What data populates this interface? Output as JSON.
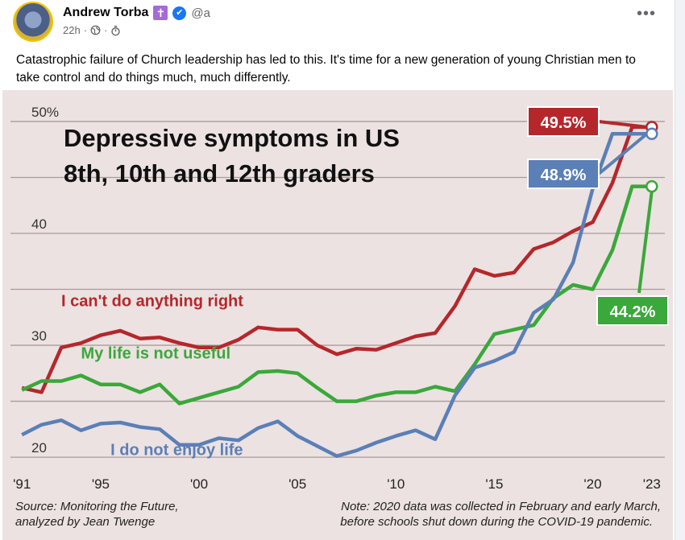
{
  "post": {
    "author_name": "Andrew Torba",
    "author_badge_icon": "latin-cross-icon",
    "handle": "@a",
    "timestamp": "22h",
    "separator": "·",
    "body_text": "Catastrophic failure of Church leadership has led to this. It's time for a new generation of young Christian men to take control and do things much, much differently.",
    "more_label": "•••"
  },
  "colors": {
    "red": "#b5272b",
    "green": "#3aa83a",
    "blue": "#5b7fb7",
    "chart_bg": "#ece2e1"
  },
  "chart_data": {
    "type": "line",
    "title_line1": "Depressive symptoms in US",
    "title_line2": "8th, 10th and 12th graders",
    "y_ticks": [
      "50%",
      "40",
      "30",
      "20"
    ],
    "ylim": [
      19,
      50.5
    ],
    "xlim": [
      1990.5,
      2023.5
    ],
    "x_tick_values": [
      1991,
      1995,
      2000,
      2005,
      2010,
      2015,
      2020,
      2023
    ],
    "x_ticks": [
      "'91",
      "'95",
      "'00",
      "'05",
      "'10",
      "'15",
      "'20",
      "'23"
    ],
    "source_line1": "Source: Monitoring the Future,",
    "source_line2": "analyzed by Jean Twenge",
    "note_line1": "Note: 2020 data was collected in February and early March,",
    "note_line2": "before schools shut down during the COVID-19 pandemic.",
    "series": [
      {
        "name": "I can't do anything right",
        "color": "#b5272b",
        "end_label": "49.5%",
        "x": [
          1991,
          1992,
          1993,
          1994,
          1995,
          1996,
          1997,
          1998,
          1999,
          2000,
          2001,
          2002,
          2003,
          2004,
          2005,
          2006,
          2007,
          2008,
          2009,
          2010,
          2011,
          2012,
          2013,
          2014,
          2015,
          2016,
          2017,
          2018,
          2019,
          2020,
          2021,
          2022,
          2023
        ],
        "y": [
          26.2,
          25.8,
          29.8,
          30.2,
          30.9,
          31.3,
          30.6,
          30.7,
          30.2,
          29.8,
          29.8,
          30.5,
          31.6,
          31.4,
          31.4,
          30.0,
          29.2,
          29.7,
          29.6,
          30.2,
          30.8,
          31.1,
          33.5,
          36.8,
          36.2,
          36.5,
          38.6,
          39.2,
          40.2,
          41.0,
          44.5,
          49.5,
          49.5
        ],
        "label_x": 1993,
        "label_y": 33.5
      },
      {
        "name": "My life is not useful",
        "color": "#3aa83a",
        "end_label": "44.2%",
        "x": [
          1991,
          1992,
          1993,
          1994,
          1995,
          1996,
          1997,
          1998,
          1999,
          2000,
          2001,
          2002,
          2003,
          2004,
          2005,
          2006,
          2007,
          2008,
          2009,
          2010,
          2011,
          2012,
          2013,
          2014,
          2015,
          2016,
          2017,
          2018,
          2019,
          2020,
          2021,
          2022,
          2023
        ],
        "y": [
          26.0,
          26.8,
          26.8,
          27.3,
          26.5,
          26.5,
          25.8,
          26.5,
          24.8,
          25.3,
          25.8,
          26.3,
          27.6,
          27.7,
          27.5,
          26.2,
          25.0,
          25.0,
          25.5,
          25.8,
          25.8,
          26.3,
          25.9,
          28.3,
          31.0,
          31.4,
          31.8,
          34.2,
          35.4,
          35.0,
          38.5,
          44.2,
          44.2
        ],
        "label_x": 1994,
        "label_y": 28.8
      },
      {
        "name": "I do not enjoy life",
        "color": "#5b7fb7",
        "end_label": "48.9%",
        "x": [
          1991,
          1992,
          1993,
          1994,
          1995,
          1996,
          1997,
          1998,
          1999,
          2000,
          2001,
          2002,
          2003,
          2004,
          2005,
          2006,
          2007,
          2008,
          2009,
          2010,
          2011,
          2012,
          2013,
          2014,
          2015,
          2016,
          2017,
          2018,
          2019,
          2020,
          2021,
          2022,
          2023
        ],
        "y": [
          22.0,
          22.9,
          23.3,
          22.4,
          23.0,
          23.1,
          22.7,
          22.5,
          21.1,
          21.1,
          21.7,
          21.5,
          22.6,
          23.2,
          21.9,
          21.0,
          20.1,
          20.6,
          21.3,
          21.9,
          22.4,
          21.6,
          25.5,
          28.0,
          28.6,
          29.4,
          32.9,
          34.1,
          37.4,
          44.0,
          48.9,
          48.9,
          48.9
        ],
        "label_x": 1995.5,
        "label_y": 20.2
      }
    ]
  }
}
